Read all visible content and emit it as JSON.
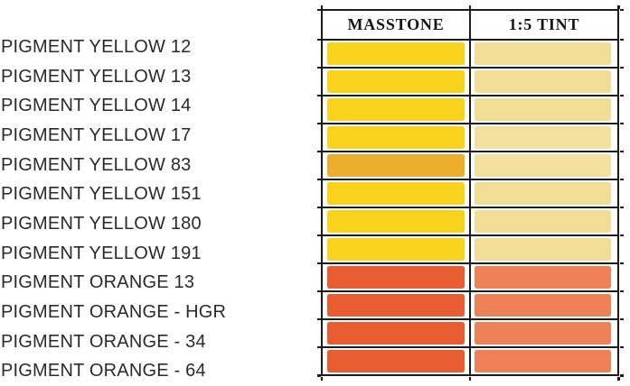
{
  "table": {
    "headers": {
      "masstone": "MASSTONE",
      "tint": "1:5 TINT"
    },
    "border_color": "#1c1c1c"
  },
  "colors": {
    "yellow_masstone": "#F9D31B",
    "yellow83_masstone": "#ECAD2F",
    "yellow_tint": "#F1DD95",
    "orange_masstone": "#E85C31",
    "orange_tint": "#EE8157",
    "label_text": "#2a2a2a",
    "page_background": "#ffffff"
  },
  "rows": [
    {
      "label": "PIGMENT YELLOW 12",
      "masstone": "#F9D31B",
      "tint": "#F1DD95"
    },
    {
      "label": "PIGMENT YELLOW 13",
      "masstone": "#F9D31B",
      "tint": "#F1DD95"
    },
    {
      "label": "PIGMENT YELLOW 14",
      "masstone": "#F9D31B",
      "tint": "#F1DD95"
    },
    {
      "label": "PIGMENT YELLOW 17",
      "masstone": "#F9D31B",
      "tint": "#F2E09E"
    },
    {
      "label": "PIGMENT YELLOW 83",
      "masstone": "#ECAD2F",
      "tint": "#F2E09E"
    },
    {
      "label": "PIGMENT YELLOW 151",
      "masstone": "#F9D31B",
      "tint": "#F1DD95"
    },
    {
      "label": "PIGMENT YELLOW 180",
      "masstone": "#F9D31B",
      "tint": "#F1DD95"
    },
    {
      "label": "PIGMENT YELLOW 191",
      "masstone": "#F9D31B",
      "tint": "#F1DD95"
    },
    {
      "label": "PIGMENT ORANGE 13",
      "masstone": "#E85C31",
      "tint": "#EE8157"
    },
    {
      "label": "PIGMENT ORANGE - HGR",
      "masstone": "#E85C31",
      "tint": "#EE8157"
    },
    {
      "label": "PIGMENT ORANGE - 34",
      "masstone": "#E85C31",
      "tint": "#EE8157"
    },
    {
      "label": "PIGMENT ORANGE - 64",
      "masstone": "#E85C31",
      "tint": "#EE8157"
    }
  ]
}
